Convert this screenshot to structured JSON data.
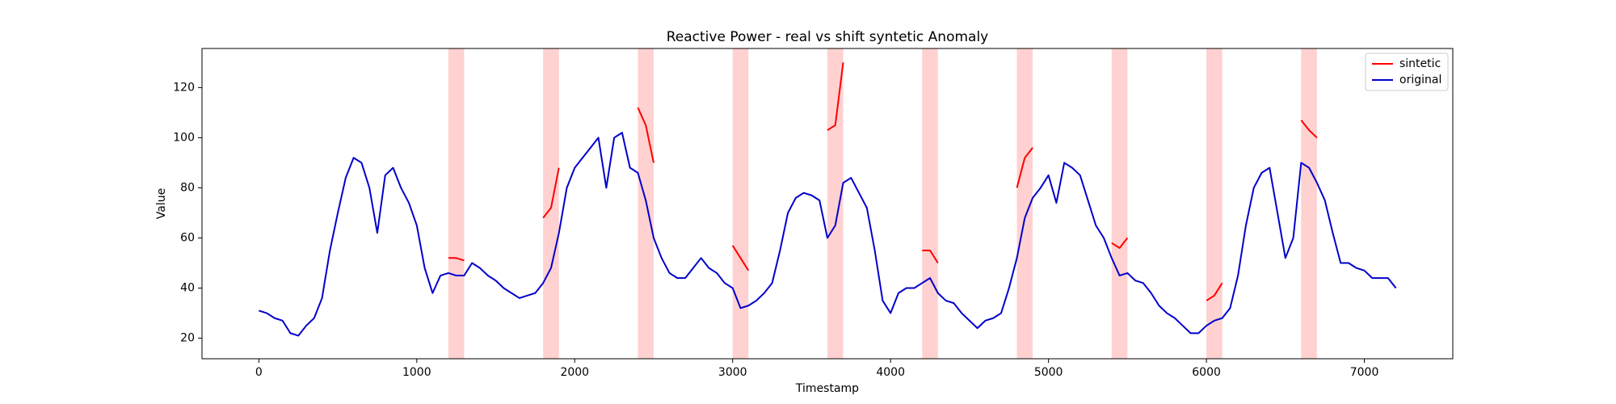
{
  "chart_data": {
    "type": "line",
    "title": "Reactive Power - real vs shift syntetic Anomaly",
    "x_label": "Timestamp",
    "y_label": "Value",
    "xlim": [
      -360,
      7560
    ],
    "ylim": [
      11.8,
      135.6
    ],
    "xticks": [
      0,
      1000,
      2000,
      3000,
      4000,
      5000,
      6000,
      7000
    ],
    "yticks": [
      20,
      40,
      60,
      80,
      100,
      120
    ],
    "legend": "upper right",
    "span_color": "#ff9999",
    "spans": [
      [
        1200,
        1300
      ],
      [
        1800,
        1900
      ],
      [
        2400,
        2500
      ],
      [
        3000,
        3100
      ],
      [
        3600,
        3700
      ],
      [
        4200,
        4300
      ],
      [
        4800,
        4900
      ],
      [
        5400,
        5500
      ],
      [
        6000,
        6100
      ],
      [
        6600,
        6700
      ]
    ],
    "x": [
      0,
      50,
      100,
      150,
      200,
      250,
      300,
      350,
      400,
      450,
      500,
      550,
      600,
      650,
      700,
      750,
      800,
      850,
      900,
      950,
      1000,
      1050,
      1100,
      1150,
      1200,
      1250,
      1300,
      1350,
      1400,
      1450,
      1500,
      1550,
      1600,
      1650,
      1700,
      1750,
      1800,
      1850,
      1900,
      1950,
      2000,
      2050,
      2100,
      2150,
      2200,
      2250,
      2300,
      2350,
      2400,
      2450,
      2500,
      2550,
      2600,
      2650,
      2700,
      2750,
      2800,
      2850,
      2900,
      2950,
      3000,
      3050,
      3100,
      3150,
      3200,
      3250,
      3300,
      3350,
      3400,
      3450,
      3500,
      3550,
      3600,
      3650,
      3700,
      3750,
      3800,
      3850,
      3900,
      3950,
      4000,
      4050,
      4100,
      4150,
      4200,
      4250,
      4300,
      4350,
      4400,
      4450,
      4500,
      4550,
      4600,
      4650,
      4700,
      4750,
      4800,
      4850,
      4900,
      4950,
      5000,
      5050,
      5100,
      5150,
      5200,
      5250,
      5300,
      5350,
      5400,
      5450,
      5500,
      5550,
      5600,
      5650,
      5700,
      5750,
      5800,
      5850,
      5900,
      5950,
      6000,
      6050,
      6100,
      6150,
      6200,
      6250,
      6300,
      6350,
      6400,
      6450,
      6500,
      6550,
      6600,
      6650,
      6700,
      6750,
      6800,
      6850,
      6900,
      6950,
      7000,
      7050,
      7100,
      7150,
      7200
    ],
    "series": [
      {
        "name": "sintetic",
        "color": "#ff0000",
        "values": [
          null,
          null,
          null,
          null,
          null,
          null,
          null,
          null,
          null,
          null,
          null,
          null,
          null,
          null,
          null,
          null,
          null,
          null,
          null,
          null,
          null,
          null,
          null,
          null,
          52,
          52,
          51,
          null,
          null,
          null,
          null,
          null,
          null,
          null,
          null,
          null,
          68,
          72,
          88,
          null,
          null,
          null,
          null,
          null,
          null,
          null,
          null,
          null,
          112,
          105,
          90,
          null,
          null,
          null,
          null,
          null,
          null,
          null,
          null,
          null,
          57,
          52,
          47,
          null,
          null,
          null,
          null,
          null,
          null,
          null,
          null,
          null,
          103,
          105,
          130,
          null,
          null,
          null,
          null,
          null,
          null,
          null,
          null,
          null,
          55,
          55,
          50,
          null,
          null,
          null,
          null,
          null,
          null,
          null,
          null,
          null,
          80,
          92,
          96,
          null,
          null,
          null,
          null,
          null,
          null,
          null,
          null,
          null,
          58,
          56,
          60,
          null,
          null,
          null,
          null,
          null,
          null,
          null,
          null,
          null,
          35,
          37,
          42,
          null,
          null,
          null,
          null,
          null,
          null,
          null,
          null,
          null,
          107,
          103,
          100,
          null,
          null,
          null,
          null,
          null,
          null,
          null,
          null,
          null,
          null
        ]
      },
      {
        "name": "original",
        "color": "#0000cc",
        "values": [
          31,
          30,
          28,
          27,
          22,
          21,
          25,
          28,
          36,
          55,
          70,
          84,
          92,
          90,
          80,
          62,
          85,
          88,
          80,
          74,
          65,
          48,
          38,
          45,
          46,
          45,
          45,
          50,
          48,
          45,
          43,
          40,
          38,
          36,
          37,
          38,
          42,
          48,
          62,
          80,
          88,
          92,
          96,
          100,
          80,
          100,
          102,
          88,
          86,
          75,
          60,
          52,
          46,
          44,
          44,
          48,
          52,
          48,
          46,
          42,
          40,
          32,
          33,
          35,
          38,
          42,
          55,
          70,
          76,
          78,
          77,
          75,
          60,
          65,
          82,
          84,
          78,
          72,
          55,
          35,
          30,
          38,
          40,
          40,
          42,
          44,
          38,
          35,
          34,
          30,
          27,
          24,
          27,
          28,
          30,
          40,
          52,
          68,
          76,
          80,
          85,
          74,
          90,
          88,
          85,
          75,
          65,
          60,
          52,
          45,
          46,
          43,
          42,
          38,
          33,
          30,
          28,
          25,
          22,
          22,
          25,
          27,
          28,
          32,
          45,
          65,
          80,
          86,
          88,
          70,
          52,
          60,
          90,
          88,
          82,
          75,
          62,
          50,
          50,
          48,
          47,
          44,
          44,
          44,
          40
        ]
      }
    ]
  }
}
